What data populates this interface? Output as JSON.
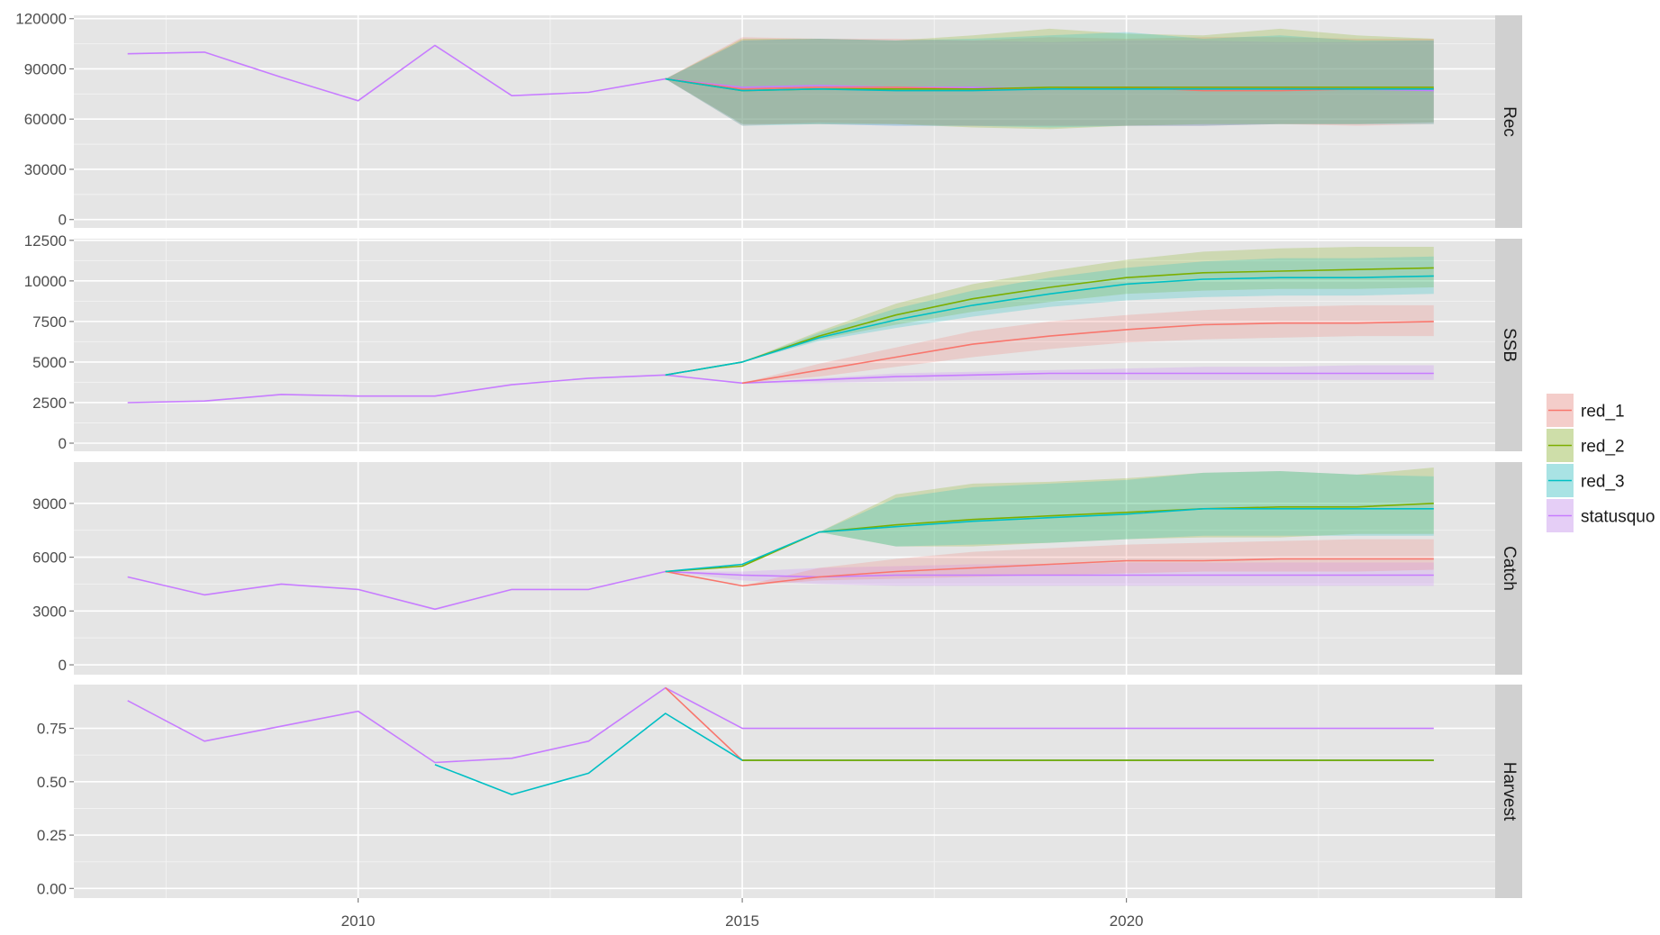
{
  "colors": {
    "red_1": "#F8766D",
    "red_2": "#7CAE00",
    "red_3": "#00BFC4",
    "statusquo": "#C77CFF",
    "panel_background": "#E5E5E5",
    "strip_background": "#D0D0D0",
    "gridline": "#FFFFFF"
  },
  "chart_data": {
    "type": "line",
    "title": "",
    "xlabel": "",
    "xlim": [
      2006.3,
      2024.8
    ],
    "x_ticks": [
      2010,
      2015,
      2020
    ],
    "x_tick_labels": [
      "2010",
      "2015",
      "2020"
    ],
    "grid": true,
    "ribbons": "shaded uncertainty band per series from 2014 to 2024",
    "legend": {
      "placement": "right",
      "entries": [
        "red_1",
        "red_2",
        "red_3",
        "statusquo"
      ]
    },
    "panels": [
      {
        "name": "Rec",
        "ylim": [
          -5000,
          122000
        ],
        "y_ticks": [
          0,
          30000,
          60000,
          90000,
          120000
        ],
        "y_tick_labels": [
          "0",
          "30000",
          "60000",
          "90000",
          "120000"
        ],
        "series": [
          {
            "name": "statusquo",
            "x": [
              2007,
              2008,
              2009,
              2010,
              2011,
              2012,
              2013,
              2014,
              2015,
              2016,
              2017,
              2018,
              2019,
              2020,
              2021,
              2022,
              2023,
              2024
            ],
            "values": [
              99000,
              100000,
              85000,
              71000,
              104000,
              74000,
              76000,
              84000,
              79000,
              80000,
              79000,
              79000,
              78000,
              79000,
              79000,
              79000,
              78000,
              77000
            ],
            "lower": [
              null,
              null,
              null,
              null,
              null,
              null,
              null,
              84000,
              57000,
              57000,
              56000,
              56000,
              56000,
              56000,
              56000,
              57000,
              57000,
              58000
            ],
            "upper": [
              null,
              null,
              null,
              null,
              null,
              null,
              null,
              84000,
              107000,
              108000,
              107000,
              107000,
              106000,
              107000,
              107000,
              106000,
              106000,
              107000
            ]
          },
          {
            "name": "red_1",
            "x": [
              2014,
              2015,
              2016,
              2017,
              2018,
              2019,
              2020,
              2021,
              2022,
              2023,
              2024
            ],
            "values": [
              84000,
              78000,
              79000,
              79000,
              78000,
              78000,
              79000,
              77000,
              77000,
              78000,
              78000
            ],
            "lower": [
              84000,
              56000,
              58000,
              57000,
              56000,
              56000,
              56000,
              56000,
              57000,
              56000,
              57000
            ],
            "upper": [
              84000,
              109000,
              108000,
              108000,
              107000,
              109000,
              108000,
              109000,
              109000,
              108000,
              108000
            ]
          },
          {
            "name": "red_2",
            "x": [
              2014,
              2015,
              2016,
              2017,
              2018,
              2019,
              2020,
              2021,
              2022,
              2023,
              2024
            ],
            "values": [
              84000,
              77000,
              78000,
              78000,
              78000,
              79000,
              79000,
              79000,
              79000,
              79000,
              79000
            ],
            "lower": [
              84000,
              57000,
              57000,
              57000,
              55000,
              54000,
              56000,
              57000,
              57000,
              57000,
              58000
            ],
            "upper": [
              84000,
              108000,
              108000,
              107000,
              110000,
              114000,
              111000,
              110000,
              114000,
              110000,
              108000
            ]
          },
          {
            "name": "red_3",
            "x": [
              2014,
              2015,
              2016,
              2017,
              2018,
              2019,
              2020,
              2021,
              2022,
              2023,
              2024
            ],
            "values": [
              84000,
              77000,
              78000,
              77000,
              77000,
              78000,
              78000,
              78000,
              78000,
              78000,
              78000
            ],
            "lower": [
              84000,
              56000,
              57000,
              56000,
              56000,
              55000,
              56000,
              56000,
              57000,
              57000,
              57000
            ],
            "upper": [
              84000,
              107000,
              108000,
              107000,
              108000,
              110000,
              112000,
              108000,
              110000,
              107000,
              107000
            ]
          }
        ]
      },
      {
        "name": "SSB",
        "ylim": [
          -500,
          12600
        ],
        "y_ticks": [
          0,
          2500,
          5000,
          7500,
          10000,
          12500
        ],
        "y_tick_labels": [
          "0",
          "2500",
          "5000",
          "7500",
          "10000",
          "12500"
        ],
        "series": [
          {
            "name": "statusquo",
            "x": [
              2007,
              2008,
              2009,
              2010,
              2011,
              2012,
              2013,
              2014,
              2015,
              2016,
              2017,
              2018,
              2019,
              2020,
              2021,
              2022,
              2023,
              2024
            ],
            "values": [
              2500,
              2600,
              3000,
              2900,
              2900,
              3600,
              4000,
              4200,
              3700,
              3900,
              4100,
              4200,
              4300,
              4300,
              4300,
              4300,
              4300,
              4300
            ],
            "lower": [
              null,
              null,
              null,
              null,
              null,
              null,
              null,
              4200,
              3700,
              3700,
              3800,
              3900,
              3900,
              3900,
              3900,
              3900,
              3900,
              3900
            ],
            "upper": [
              null,
              null,
              null,
              null,
              null,
              null,
              null,
              4200,
              3700,
              4000,
              4300,
              4400,
              4500,
              4600,
              4700,
              4700,
              4800,
              4800
            ]
          },
          {
            "name": "red_1",
            "x": [
              2015,
              2016,
              2017,
              2018,
              2019,
              2020,
              2021,
              2022,
              2023,
              2024
            ],
            "values": [
              3700,
              4500,
              5300,
              6100,
              6600,
              7000,
              7300,
              7400,
              7400,
              7500
            ],
            "lower": [
              3700,
              4100,
              4700,
              5300,
              5800,
              6200,
              6400,
              6500,
              6600,
              6600
            ],
            "upper": [
              3700,
              4900,
              5900,
              6900,
              7500,
              7900,
              8200,
              8400,
              8500,
              8500
            ]
          },
          {
            "name": "red_2",
            "x": [
              2014,
              2015,
              2016,
              2017,
              2018,
              2019,
              2020,
              2021,
              2022,
              2023,
              2024
            ],
            "values": [
              4200,
              5000,
              6600,
              7900,
              8900,
              9600,
              10200,
              10500,
              10600,
              10700,
              10800
            ],
            "lower": [
              4200,
              5000,
              6400,
              7300,
              8100,
              8700,
              9200,
              9400,
              9500,
              9500,
              9600
            ],
            "upper": [
              4200,
              5000,
              6900,
              8600,
              9800,
              10600,
              11300,
              11800,
              12000,
              12100,
              12100
            ]
          },
          {
            "name": "red_3",
            "x": [
              2014,
              2015,
              2016,
              2017,
              2018,
              2019,
              2020,
              2021,
              2022,
              2023,
              2024
            ],
            "values": [
              4200,
              5000,
              6500,
              7600,
              8500,
              9200,
              9800,
              10100,
              10200,
              10200,
              10300
            ],
            "lower": [
              4200,
              5000,
              6300,
              7100,
              7800,
              8400,
              8800,
              9000,
              9100,
              9100,
              9200
            ],
            "upper": [
              4200,
              5000,
              6800,
              8300,
              9400,
              10200,
              10800,
              11200,
              11400,
              11400,
              11500
            ]
          }
        ]
      },
      {
        "name": "Catch",
        "ylim": [
          -550,
          11300
        ],
        "y_ticks": [
          0,
          3000,
          6000,
          9000
        ],
        "y_tick_labels": [
          "0",
          "3000",
          "6000",
          "9000"
        ],
        "series": [
          {
            "name": "statusquo",
            "x": [
              2007,
              2008,
              2009,
              2010,
              2011,
              2012,
              2013,
              2014,
              2015,
              2016,
              2017,
              2018,
              2019,
              2020,
              2021,
              2022,
              2023,
              2024
            ],
            "values": [
              4900,
              3900,
              4500,
              4200,
              3100,
              4200,
              4200,
              5200,
              5000,
              4900,
              5000,
              5000,
              5000,
              5000,
              5000,
              5000,
              5000,
              5000
            ],
            "lower": [
              null,
              null,
              null,
              null,
              null,
              null,
              null,
              5200,
              4700,
              4500,
              4400,
              4400,
              4400,
              4400,
              4400,
              4400,
              4400,
              4400
            ],
            "upper": [
              null,
              null,
              null,
              null,
              null,
              null,
              null,
              5200,
              5200,
              5400,
              5500,
              5600,
              5600,
              5700,
              5700,
              5700,
              5700,
              5700
            ]
          },
          {
            "name": "red_1",
            "x": [
              2014,
              2015,
              2016,
              2017,
              2018,
              2019,
              2020,
              2021,
              2022,
              2023,
              2024
            ],
            "values": [
              5200,
              4400,
              4900,
              5200,
              5400,
              5600,
              5800,
              5800,
              5900,
              5900,
              5900
            ],
            "lower": [
              5200,
              4400,
              4700,
              4800,
              4900,
              5000,
              5100,
              5200,
              5200,
              5200,
              5300
            ],
            "upper": [
              5200,
              4400,
              5400,
              5900,
              6300,
              6500,
              6700,
              6800,
              6900,
              7000,
              7000
            ]
          },
          {
            "name": "red_2",
            "x": [
              2014,
              2015,
              2016,
              2017,
              2018,
              2019,
              2020,
              2021,
              2022,
              2023,
              2024
            ],
            "values": [
              5200,
              5500,
              7400,
              7800,
              8100,
              8300,
              8500,
              8700,
              8800,
              8800,
              9000
            ],
            "lower": [
              5200,
              5500,
              7400,
              6600,
              6600,
              6800,
              7000,
              7100,
              7100,
              7300,
              7300
            ],
            "upper": [
              5200,
              5500,
              7400,
              9500,
              10100,
              10200,
              10400,
              10700,
              10800,
              10600,
              11000
            ]
          },
          {
            "name": "red_3",
            "x": [
              2014,
              2015,
              2016,
              2017,
              2018,
              2019,
              2020,
              2021,
              2022,
              2023,
              2024
            ],
            "values": [
              5200,
              5600,
              7400,
              7700,
              8000,
              8200,
              8400,
              8700,
              8700,
              8700,
              8700
            ],
            "lower": [
              5200,
              5600,
              7400,
              6600,
              6700,
              6800,
              7000,
              7200,
              7200,
              7200,
              7200
            ],
            "upper": [
              5200,
              5600,
              7400,
              9300,
              9900,
              10100,
              10300,
              10700,
              10800,
              10600,
              10500
            ]
          }
        ]
      },
      {
        "name": "Harvest",
        "ylim": [
          -0.045,
          0.955
        ],
        "y_ticks": [
          0,
          0.25,
          0.5,
          0.75
        ],
        "y_tick_labels": [
          "0.00",
          "0.25",
          "0.50",
          "0.75"
        ],
        "series": [
          {
            "name": "statusquo",
            "x": [
              2007,
              2008,
              2009,
              2010,
              2011,
              2012,
              2013,
              2014,
              2015,
              2016,
              2017,
              2018,
              2019,
              2020,
              2021,
              2022,
              2023,
              2024
            ],
            "values": [
              0.88,
              0.69,
              0.76,
              0.83,
              0.59,
              0.61,
              0.69,
              0.94,
              0.75,
              0.75,
              0.75,
              0.75,
              0.75,
              0.75,
              0.75,
              0.75,
              0.75,
              0.75
            ]
          },
          {
            "name": "red_1",
            "x": [
              2014,
              2015,
              2016,
              2017,
              2018,
              2019,
              2020,
              2021,
              2022,
              2023,
              2024
            ],
            "values": [
              0.94,
              0.6,
              0.6,
              0.6,
              0.6,
              0.6,
              0.6,
              0.6,
              0.6,
              0.6,
              0.6
            ]
          },
          {
            "name": "red_3",
            "x": [
              2011,
              2012,
              2013,
              2014,
              2015,
              2016,
              2017,
              2018,
              2019,
              2020,
              2021,
              2022,
              2023,
              2024
            ],
            "values": [
              0.58,
              0.44,
              0.54,
              0.82,
              0.6,
              0.6,
              0.6,
              0.6,
              0.6,
              0.6,
              0.6,
              0.6,
              0.6,
              0.6
            ]
          },
          {
            "name": "red_2",
            "x": [
              2015,
              2016,
              2017,
              2018,
              2019,
              2020,
              2021,
              2022,
              2023,
              2024
            ],
            "values": [
              0.6,
              0.6,
              0.6,
              0.6,
              0.6,
              0.6,
              0.6,
              0.6,
              0.6,
              0.6
            ]
          }
        ]
      }
    ]
  }
}
